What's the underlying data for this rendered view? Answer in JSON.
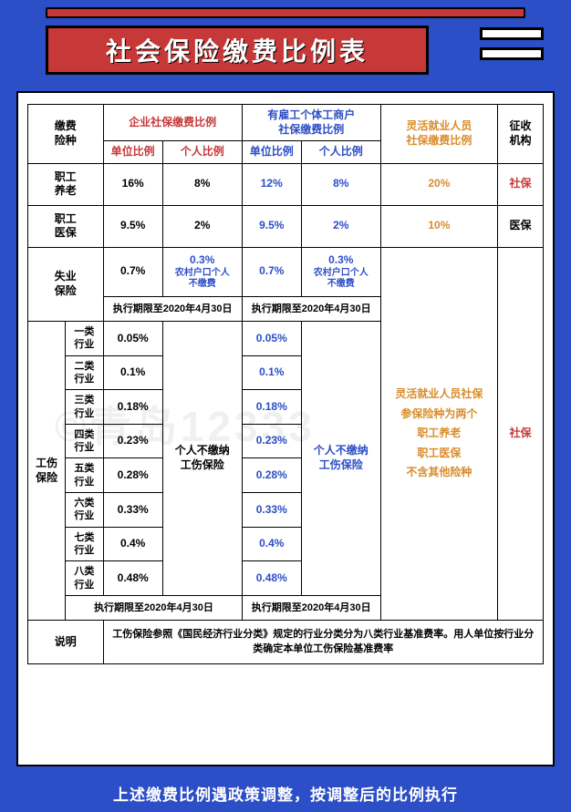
{
  "colors": {
    "page_bg": "#2c4ec7",
    "title_bg": "#c73838",
    "border": "#000000",
    "sheet_bg": "#ffffff",
    "red_text": "#c73838",
    "blue_text": "#2c4ec7",
    "orange_text": "#d98c2a",
    "black_text": "#000000",
    "watermark": "rgba(0,0,0,0.06)"
  },
  "title": "社会保险缴费比例表",
  "watermark_text": "©青岛12333",
  "headers": {
    "row_label": "缴费\n险种",
    "group_enterprise": "企业社保缴费比例",
    "group_individual_biz": "有雇工个体工商户\n社保缴费比例",
    "flexible": "灵活就业人员\n社保缴费比例",
    "agency": "征收\n机构",
    "unit_ratio": "单位比例",
    "personal_ratio": "个人比例"
  },
  "rows": {
    "pension": {
      "label": "职工\n养老",
      "ent_unit": "16%",
      "ent_personal": "8%",
      "biz_unit": "12%",
      "biz_personal": "8%",
      "flexible": "20%",
      "agency": "社保"
    },
    "medical": {
      "label": "职工\n医保",
      "ent_unit": "9.5%",
      "ent_personal": "2%",
      "biz_unit": "9.5%",
      "biz_personal": "2%",
      "flexible": "10%",
      "agency": "医保"
    },
    "unemployment": {
      "label": "失业\n保险",
      "ent_unit": "0.7%",
      "ent_personal_rate": "0.3%",
      "ent_personal_note": "农村户口个人\n不缴费",
      "biz_unit": "0.7%",
      "biz_personal_rate": "0.3%",
      "biz_personal_note": "农村户口个人\n不缴费"
    },
    "unemployment_deadline": {
      "ent": "执行期限至2020年4月30日",
      "biz": "执行期限至2020年4月30日"
    },
    "injury": {
      "label": "工伤\n保险",
      "categories": [
        {
          "cat": "一类\n行业",
          "ent": "0.05%",
          "biz": "0.05%"
        },
        {
          "cat": "二类\n行业",
          "ent": "0.1%",
          "biz": "0.1%"
        },
        {
          "cat": "三类\n行业",
          "ent": "0.18%",
          "biz": "0.18%"
        },
        {
          "cat": "四类\n行业",
          "ent": "0.23%",
          "biz": "0.23%"
        },
        {
          "cat": "五类\n行业",
          "ent": "0.28%",
          "biz": "0.28%"
        },
        {
          "cat": "六类\n行业",
          "ent": "0.33%",
          "biz": "0.33%"
        },
        {
          "cat": "七类\n行业",
          "ent": "0.4%",
          "biz": "0.4%"
        },
        {
          "cat": "八类\n行业",
          "ent": "0.48%",
          "biz": "0.48%"
        }
      ],
      "personal_note": "个人不缴纳\n工伤保险"
    },
    "injury_deadline": {
      "ent": "执行期限至2020年4月30日",
      "biz": "执行期限至2020年4月30日"
    },
    "flexible_injury_note": "灵活就业人员社保\n参保险种为两个\n职工养老\n职工医保\n不含其他险种",
    "flexible_agency": "社保",
    "explain": {
      "label": "说明",
      "text": "工伤保险参照《国民经济行业分类》规定的行业分类分为八类行业基准费率。用人单位按行业分类确定本单位工伤保险基准费率"
    }
  },
  "footer": "上述缴费比例遇政策调整，按调整后的比例执行"
}
